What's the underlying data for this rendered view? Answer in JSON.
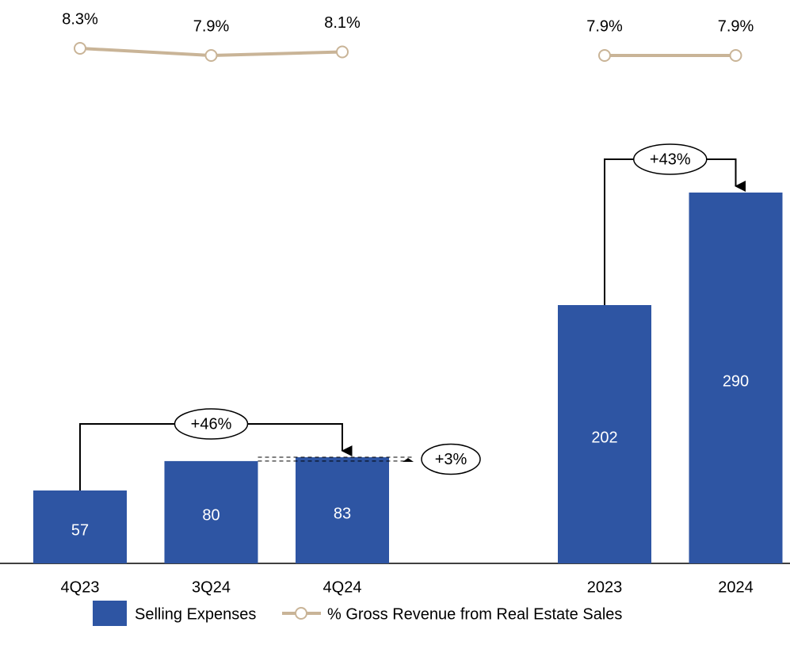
{
  "chart_data": {
    "type": "bar",
    "categories": [
      "4Q23",
      "3Q24",
      "4Q24",
      null,
      "2023",
      "2024"
    ],
    "series": [
      {
        "name": "Selling Expenses",
        "color": "#2e55a3",
        "values": [
          57,
          80,
          83,
          null,
          202,
          290
        ]
      },
      {
        "name": "% Gross Revenue from Real Estate Sales",
        "type": "line",
        "color": "#c9b497",
        "values": [
          8.3,
          7.9,
          8.1,
          null,
          7.9,
          7.9
        ],
        "value_labels": [
          "8.3%",
          "7.9%",
          "8.1%",
          null,
          "7.9%",
          "7.9%"
        ]
      }
    ],
    "annotations": [
      "+46%",
      "+3%",
      "+43%"
    ]
  }
}
